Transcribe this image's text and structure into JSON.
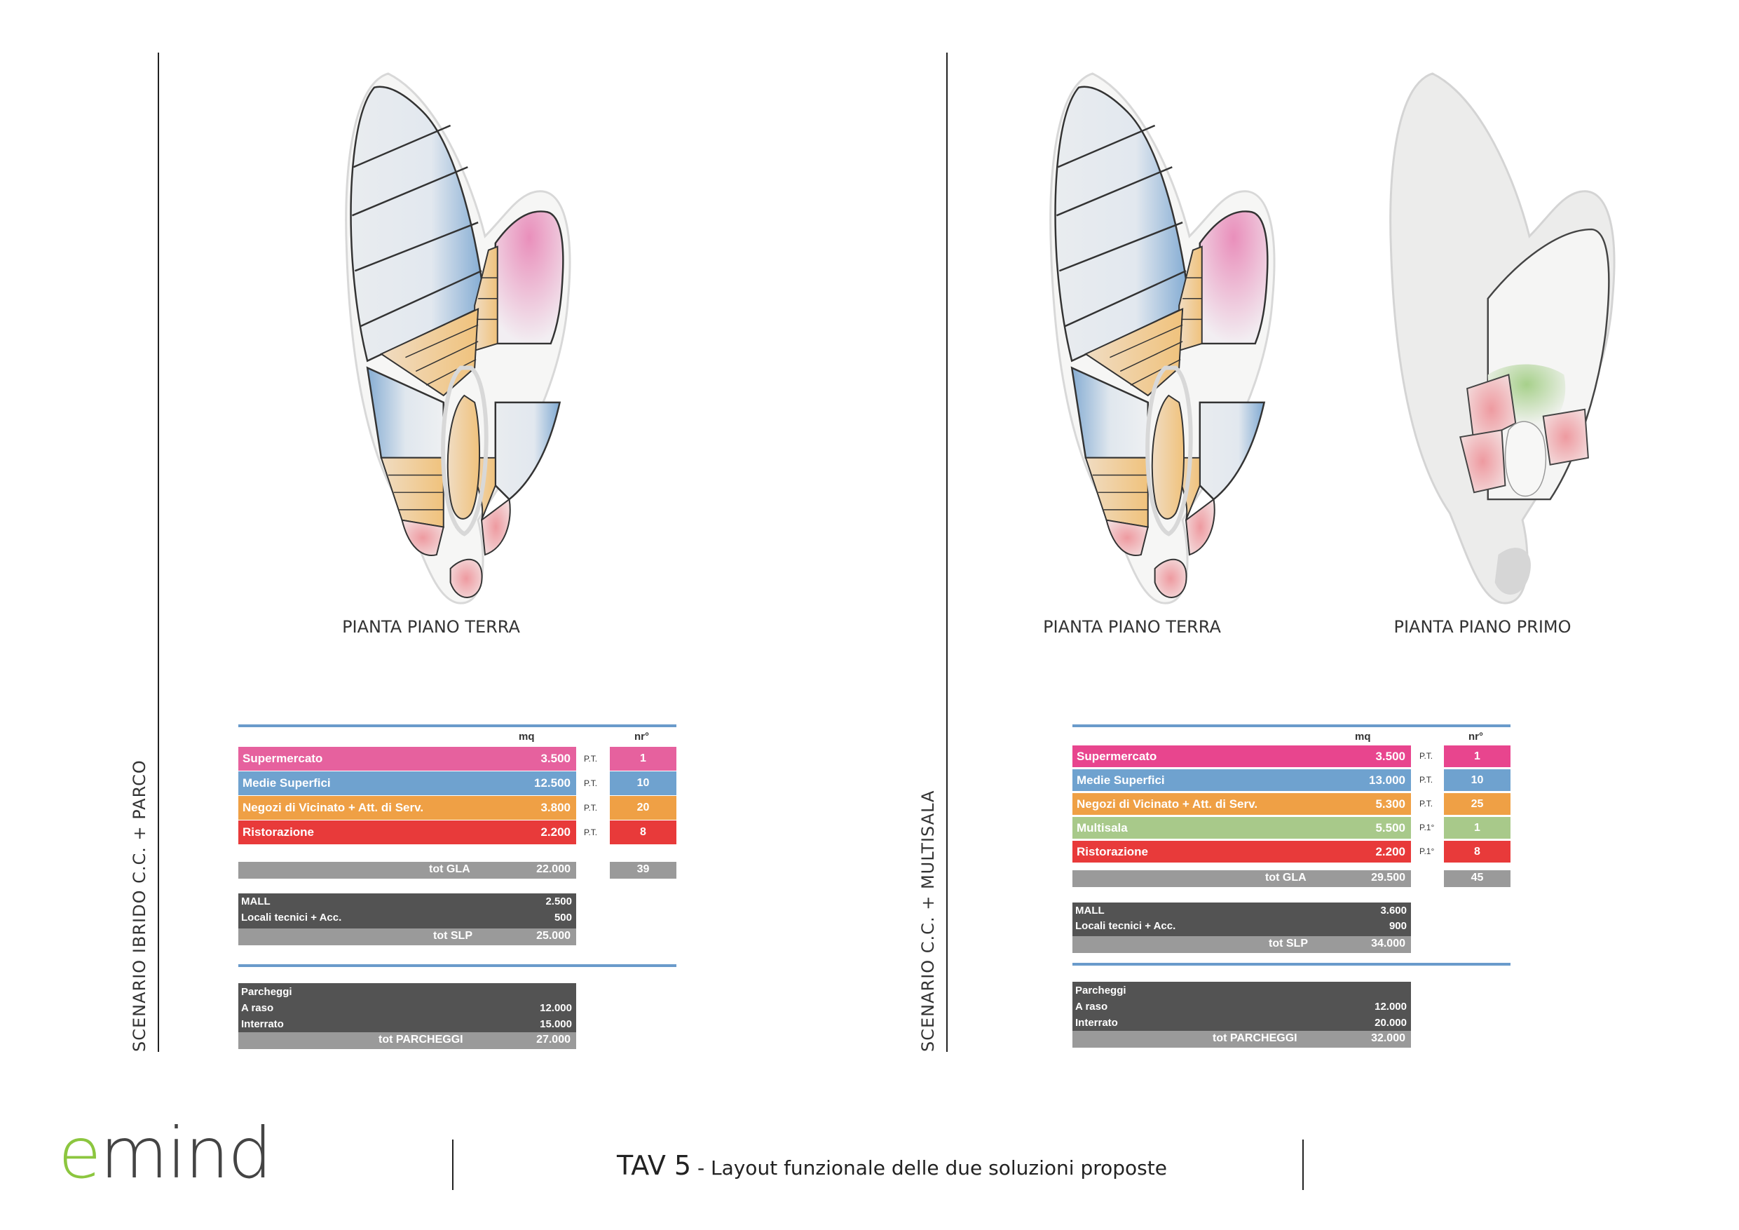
{
  "scenarios": [
    {
      "title": "SCENARIO IBRIDO C.C. + PARCO",
      "captions": [
        "PIANTA PIANO TERRA"
      ],
      "headers": {
        "mq": "mq",
        "nr": "nr°"
      },
      "rows": [
        {
          "label": "Supermercato",
          "mq": "3.500",
          "level": "P.T.",
          "nr": "1",
          "color": "#e6619e"
        },
        {
          "label": "Medie Superfici",
          "mq": "12.500",
          "level": "P.T.",
          "nr": "10",
          "color": "#6fa2cf"
        },
        {
          "label": "Negozi di Vicinato + Att. di Serv.",
          "mq": "3.800",
          "level": "P.T.",
          "nr": "20",
          "color": "#efa045"
        },
        {
          "label": "Ristorazione",
          "mq": "2.200",
          "level": "P.T.",
          "nr": "8",
          "color": "#e83a3a"
        }
      ],
      "tot_gla": {
        "label": "tot GLA",
        "mq": "22.000",
        "nr": "39"
      },
      "slp": {
        "lines": [
          {
            "label": "MALL",
            "value": "2.500"
          },
          {
            "label": "Locali tecnici + Acc.",
            "value": "500"
          }
        ],
        "total_label": "tot SLP",
        "total": "25.000"
      },
      "parking": {
        "lines": [
          {
            "label": "Parcheggi",
            "value": ""
          },
          {
            "label": "A raso",
            "value": "12.000"
          },
          {
            "label": "Interrato",
            "value": "15.000"
          }
        ],
        "total_label": "tot PARCHEGGI",
        "total": "27.000"
      }
    },
    {
      "title": "SCENARIO C.C. + MULTISALA",
      "captions": [
        "PIANTA PIANO TERRA",
        "PIANTA PIANO PRIMO"
      ],
      "headers": {
        "mq": "mq",
        "nr": "nr°"
      },
      "rows": [
        {
          "label": "Supermercato",
          "mq": "3.500",
          "level": "P.T.",
          "nr": "1",
          "color": "#e8458e"
        },
        {
          "label": "Medie Superfici",
          "mq": "13.000",
          "level": "P.T.",
          "nr": "10",
          "color": "#6fa2cf"
        },
        {
          "label": "Negozi di Vicinato + Att. di Serv.",
          "mq": "5.300",
          "level": "P.T.",
          "nr": "25",
          "color": "#efa045"
        },
        {
          "label": "Multisala",
          "mq": "5.500",
          "level": "P.1°",
          "nr": "1",
          "color": "#a8c98a"
        },
        {
          "label": "Ristorazione",
          "mq": "2.200",
          "level": "P.1°",
          "nr": "8",
          "color": "#e83a3a"
        }
      ],
      "tot_gla": {
        "label": "tot GLA",
        "mq": "29.500",
        "nr": "45"
      },
      "slp": {
        "lines": [
          {
            "label": "MALL",
            "value": "3.600"
          },
          {
            "label": "Locali tecnici + Acc.",
            "value": "900"
          }
        ],
        "total_label": "tot SLP",
        "total": "34.000"
      },
      "parking": {
        "lines": [
          {
            "label": "Parcheggi",
            "value": ""
          },
          {
            "label": "A raso",
            "value": "12.000"
          },
          {
            "label": "Interrato",
            "value": "20.000"
          }
        ],
        "total_label": "tot PARCHEGGI",
        "total": "32.000"
      }
    }
  ],
  "footer": {
    "logo_e": "e",
    "logo_rest": "mind",
    "tav": "TAV 5",
    "subtitle": " - Layout funzionale delle due soluzioni proposte"
  },
  "colors": {
    "blue": "#6fa2cf",
    "pink": "#e6619e",
    "orange": "#efa045",
    "red": "#e83a3a",
    "green": "#a8c98a",
    "dark": "#535353",
    "gray": "#9a9a9a",
    "logo_green": "#8cc63f"
  }
}
